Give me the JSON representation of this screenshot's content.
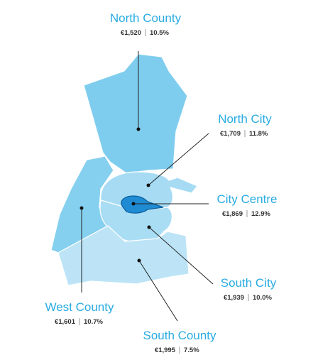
{
  "regions": [
    {
      "name": "North County",
      "price": "€1,520",
      "change": "10.5%"
    },
    {
      "name": "North City",
      "price": "€1,709",
      "change": "11.8%"
    },
    {
      "name": "City Centre",
      "price": "€1,869",
      "change": "12.9%"
    },
    {
      "name": "South City",
      "price": "€1,939",
      "change": "10.0%"
    },
    {
      "name": "West County",
      "price": "€1,601",
      "change": "10.7%"
    },
    {
      "name": "South County",
      "price": "€1,995",
      "change": "7.5%"
    }
  ]
}
